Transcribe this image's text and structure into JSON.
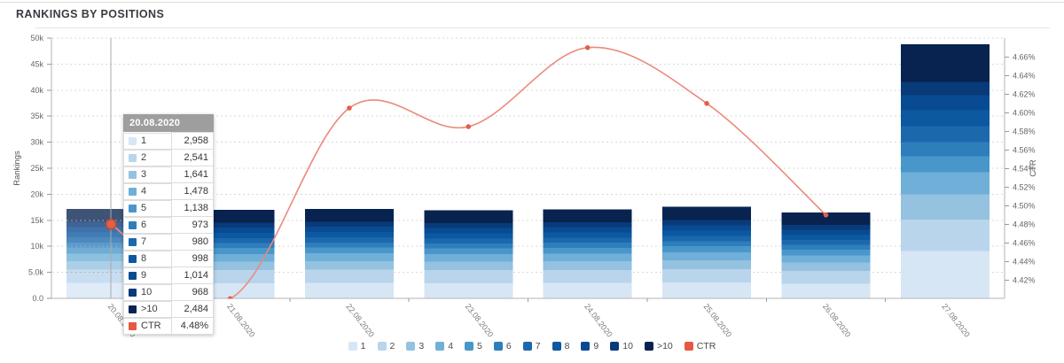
{
  "header": {
    "title": "RANKINGS BY POSITIONS"
  },
  "chart_data": {
    "type": "combo: stacked-bar + line",
    "categories": [
      "20.08.2020",
      "21.08.2020",
      "22.08.2020",
      "23.08.2020",
      "24.08.2020",
      "25.08.2020",
      "26.08.2020",
      "27.08.2020"
    ],
    "stack_series": [
      {
        "name": "1",
        "color": "#d7e6f5",
        "values": [
          2958,
          2929,
          2963,
          2911,
          2945,
          3032,
          2842,
          9100
        ]
      },
      {
        "name": "2",
        "color": "#b9d5ec",
        "values": [
          2541,
          2516,
          2545,
          2501,
          2530,
          2604,
          2441,
          6000
        ]
      },
      {
        "name": "3",
        "color": "#94c2df",
        "values": [
          1641,
          1625,
          1644,
          1615,
          1634,
          1682,
          1577,
          4900
        ]
      },
      {
        "name": "4",
        "color": "#6fafd8",
        "values": [
          1478,
          1463,
          1480,
          1454,
          1472,
          1515,
          1420,
          4200
        ]
      },
      {
        "name": "5",
        "color": "#4997ca",
        "values": [
          1138,
          1127,
          1140,
          1120,
          1133,
          1166,
          1093,
          3100
        ]
      },
      {
        "name": "6",
        "color": "#2e7ebc",
        "values": [
          973,
          963,
          975,
          957,
          969,
          997,
          935,
          2700
        ]
      },
      {
        "name": "7",
        "color": "#1c68ad",
        "values": [
          980,
          970,
          982,
          964,
          976,
          1004,
          942,
          3100
        ]
      },
      {
        "name": "8",
        "color": "#0c58a1",
        "values": [
          998,
          988,
          1000,
          982,
          994,
          1023,
          959,
          3000
        ]
      },
      {
        "name": "9",
        "color": "#084b92",
        "values": [
          1014,
          1004,
          1016,
          998,
          1010,
          1039,
          974,
          2900
        ]
      },
      {
        "name": "10",
        "color": "#093a79",
        "values": [
          968,
          958,
          970,
          952,
          964,
          992,
          930,
          2600
        ]
      },
      {
        "name": ">10",
        "color": "#082350",
        "values": [
          2484,
          2459,
          2488,
          2444,
          2473,
          2546,
          2387,
          7200
        ]
      }
    ],
    "line_series": {
      "name": "CTR",
      "line_color": "#eb8a7a",
      "marker_color": "#e2604a",
      "legend_color": "#e85744",
      "values": [
        4.48,
        4.4,
        4.605,
        4.585,
        4.67,
        4.61,
        4.49,
        null
      ]
    },
    "axes": {
      "left": {
        "label": "Rankings",
        "min": 0,
        "max": 50000,
        "tick_values": [
          0,
          5000,
          10000,
          15000,
          20000,
          25000,
          30000,
          35000,
          40000,
          45000,
          50000
        ],
        "tick_labels": [
          "0.0",
          "5.0k",
          "10k",
          "15k",
          "20k",
          "25k",
          "30k",
          "35k",
          "40k",
          "45k",
          "50k"
        ]
      },
      "right": {
        "label": "CTR",
        "tick_values": [
          4.42,
          4.44,
          4.46,
          4.48,
          4.5,
          4.52,
          4.54,
          4.56,
          4.58,
          4.6,
          4.62,
          4.64,
          4.66
        ],
        "tick_labels": [
          "4.42%",
          "4.44%",
          "4.46%",
          "4.48%",
          "4.50%",
          "4.52%",
          "4.54%",
          "4.56%",
          "4.58%",
          "4.60%",
          "4.62%",
          "4.64%",
          "4.66%"
        ]
      }
    },
    "grid": true,
    "legend_position": "bottom-center",
    "hover_index": 0
  },
  "tooltip": {
    "date": "20.08.2020",
    "rows": [
      {
        "label": "1",
        "value": "2,958"
      },
      {
        "label": "2",
        "value": "2,541"
      },
      {
        "label": "3",
        "value": "1,641"
      },
      {
        "label": "4",
        "value": "1,478"
      },
      {
        "label": "5",
        "value": "1,138"
      },
      {
        "label": "6",
        "value": "973"
      },
      {
        "label": "7",
        "value": "980"
      },
      {
        "label": "8",
        "value": "998"
      },
      {
        "label": "9",
        "value": "1,014"
      },
      {
        "label": "10",
        "value": "968"
      },
      {
        "label": ">10",
        "value": "2,484"
      },
      {
        "label": "CTR",
        "value": "4.48%"
      }
    ]
  }
}
